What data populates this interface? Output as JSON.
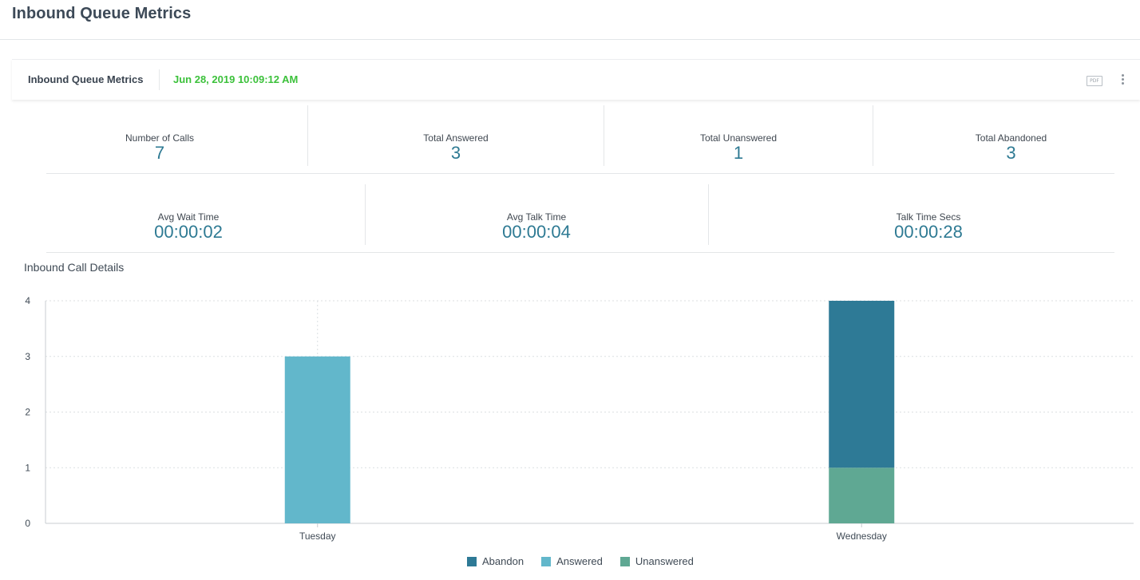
{
  "page": {
    "title": "Inbound Queue Metrics"
  },
  "panel": {
    "title": "Inbound Queue Metrics",
    "timestamp": "Jun 28, 2019 10:09:12 AM",
    "pdf_label": "PDF",
    "more_icon": "more-vertical-icon"
  },
  "metrics_row1": [
    {
      "label": "Number of Calls",
      "value": "7"
    },
    {
      "label": "Total Answered",
      "value": "3"
    },
    {
      "label": "Total Unanswered",
      "value": "1"
    },
    {
      "label": "Total Abandoned",
      "value": "3"
    }
  ],
  "metrics_row2": [
    {
      "label": "Avg Wait Time",
      "value": "00:00:02"
    },
    {
      "label": "Avg Talk Time",
      "value": "00:00:04"
    },
    {
      "label": "Talk Time Secs",
      "value": "00:00:28"
    }
  ],
  "section": {
    "title": "Inbound Call Details"
  },
  "colors": {
    "abandon": "#2e7a96",
    "answered": "#62b7cb",
    "unanswered": "#5fa893",
    "accent": "#2e7a93",
    "timestamp": "#3cc13b"
  },
  "chart_data": {
    "type": "bar",
    "stacked": true,
    "title": "Inbound Call Details",
    "categories": [
      "Tuesday",
      "Wednesday"
    ],
    "series": [
      {
        "name": "Unanswered",
        "color": "#5fa893",
        "values": [
          0,
          1
        ]
      },
      {
        "name": "Answered",
        "color": "#62b7cb",
        "values": [
          3,
          0
        ]
      },
      {
        "name": "Abandon",
        "color": "#2e7a96",
        "values": [
          0,
          3
        ]
      }
    ],
    "legend": [
      "Abandon",
      "Answered",
      "Unanswered"
    ],
    "yticks": [
      0,
      1,
      2,
      3,
      4
    ],
    "ylim": [
      0,
      4
    ],
    "xlabel": "",
    "ylabel": "",
    "grid": true,
    "legend_position": "bottom-center"
  }
}
